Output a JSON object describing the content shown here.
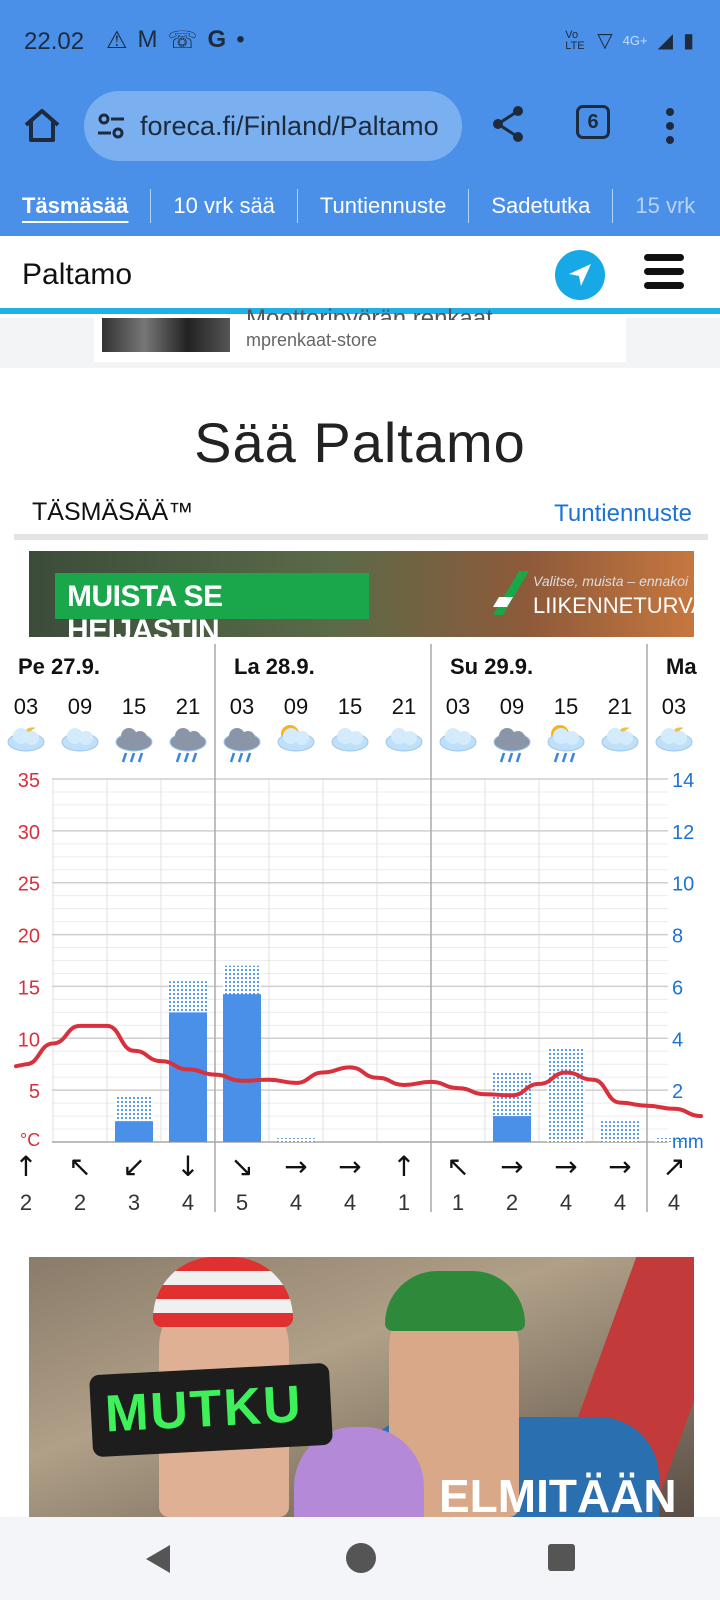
{
  "status": {
    "time": "22.02",
    "left_icons": [
      "warning-icon",
      "gmail-icon",
      "missed-call-icon",
      "google-icon",
      "dot-icon"
    ],
    "network": "4G+",
    "volte": "Vo LTE"
  },
  "browser": {
    "url": "foreca.fi/Finland/Paltamo",
    "tab_count": "6"
  },
  "nav_tabs": [
    "Täsmäsää",
    "10 vrk sää",
    "Tuntiennuste",
    "Sadetutka",
    "15 vrk"
  ],
  "location": "Paltamo",
  "ad_top": {
    "title": "Moottoripyörän renkaat",
    "store": "mprenkaat-store"
  },
  "page_title": "Sää Paltamo",
  "section": {
    "label": "TÄSMÄSÄÄ™",
    "link": "Tuntiennuste"
  },
  "banner1": {
    "text": "MUISTA SE HEIJASTIN",
    "tag": "Valitse, muista – ennakoi",
    "brand": "LIIKENNETURVA"
  },
  "banner2": {
    "product": "MUTKU",
    "text": "ELMITÄÄN"
  },
  "chart_data": {
    "type": "bar",
    "days": [
      {
        "label": "Pe 27.9.",
        "start": 0
      },
      {
        "label": "La 28.9.",
        "start": 4
      },
      {
        "label": "Su 29.9.",
        "start": 8
      },
      {
        "label": "Ma",
        "start": 12
      }
    ],
    "hours": [
      "03",
      "09",
      "15",
      "21",
      "03",
      "09",
      "15",
      "21",
      "03",
      "09",
      "15",
      "21",
      "03"
    ],
    "weather_icons": [
      "moon-cloud-icon",
      "cloud-icon",
      "rain-cloud-icon",
      "heavy-rain-icon",
      "rain-cloud-icon",
      "sun-cloud-icon",
      "cloud-icon",
      "cloud-icon",
      "cloud-icon",
      "rain-cloud-icon",
      "sun-rain-icon",
      "moon-cloud-icon",
      "moon-cloud-icon"
    ],
    "temperature_series": {
      "name": "°C",
      "x": [
        0,
        0.5,
        1,
        1.5,
        2,
        2.5,
        3,
        3.5,
        4,
        4.5,
        5,
        5.5,
        6,
        6.5,
        7,
        7.5,
        8,
        8.5,
        9,
        9.5,
        10,
        10.5,
        11,
        11.5,
        12,
        12.5
      ],
      "values": [
        7.5,
        9.5,
        11.2,
        11.2,
        8.8,
        7.8,
        7.0,
        6.5,
        5.9,
        6.0,
        5.7,
        6.7,
        7.2,
        6.2,
        5.5,
        5.8,
        5.2,
        4.6,
        4.5,
        5.6,
        6.7,
        6.0,
        3.8,
        3.5,
        3.2,
        2.5
      ]
    },
    "precip_series": {
      "name": "mm",
      "solid": [
        0,
        0,
        0.8,
        5.0,
        5.7,
        0,
        0,
        0,
        0,
        1.0,
        0,
        0,
        0
      ],
      "range": [
        0,
        0,
        1.8,
        6.2,
        6.8,
        0.15,
        0,
        0,
        0,
        2.7,
        3.6,
        0.8,
        0.15
      ]
    },
    "wind": {
      "directions": [
        "↑",
        "↖",
        "↙",
        "↓",
        "↘",
        "→",
        "→",
        "↑",
        "↖",
        "→",
        "→",
        "→",
        "↗"
      ],
      "speeds": [
        "2",
        "2",
        "3",
        "4",
        "5",
        "4",
        "4",
        "1",
        "1",
        "2",
        "4",
        "4",
        "4"
      ]
    },
    "y_left": {
      "unit": "°C",
      "ticks": [
        5,
        10,
        15,
        20,
        25,
        30,
        35
      ],
      "range": [
        0,
        35
      ]
    },
    "y_right": {
      "unit": "mm",
      "ticks": [
        2,
        4,
        6,
        8,
        10,
        12,
        14
      ],
      "range": [
        0,
        14
      ]
    },
    "grid": true,
    "colors": {
      "temperature": "#d8303c",
      "precip": "#4a90e8",
      "left_axis": "#d8303c",
      "right_axis": "#1a73d9"
    }
  }
}
